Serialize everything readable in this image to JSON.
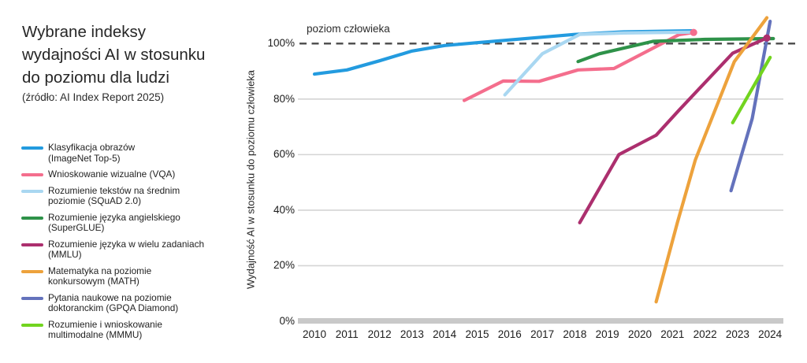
{
  "panel": {
    "title_lines": [
      "Wybrane indeksy",
      "wydajności AI w stosunku",
      "do poziomu dla ludzi"
    ],
    "source": "(źródło: AI Index Report 2025)"
  },
  "chart_data": {
    "type": "line",
    "title": "Wybrane indeksy wydajności AI w stosunku do poziomu dla ludzi",
    "source": "(źródło: AI Index Report 2025)",
    "xlabel": "",
    "ylabel": "Wydajność AI w stosunku do poziomu człowieka",
    "human_level_label": "poziom człowieka",
    "human_level_pct": 100,
    "ylim": [
      0,
      112
    ],
    "x_ticks": [
      2010,
      2011,
      2012,
      2013,
      2014,
      2015,
      2016,
      2017,
      2018,
      2019,
      2020,
      2021,
      2022,
      2023,
      2024
    ],
    "y_ticks": [
      {
        "pct": 0,
        "label": "0%"
      },
      {
        "pct": 20,
        "label": "20%"
      },
      {
        "pct": 40,
        "label": "40%"
      },
      {
        "pct": 60,
        "label": "60%"
      },
      {
        "pct": 80,
        "label": "80%"
      },
      {
        "pct": 100,
        "label": "100%"
      }
    ],
    "y_grid": [
      20,
      40,
      60,
      80
    ],
    "grid": "horizontal",
    "legend_position": "left",
    "grid_color": "#d4d4d4",
    "baseline_color": "#c9c9c9",
    "dashed_line_color": "#4a4a4a",
    "series": [
      {
        "id": "imagenet",
        "label_lines": [
          "Klasyfikacja obrazów",
          "(ImageNet Top-5)"
        ],
        "color": "#239bdf",
        "end_dot": false,
        "points": [
          [
            2010,
            89
          ],
          [
            2011,
            90.5
          ],
          [
            2012,
            93.8
          ],
          [
            2013,
            97.3
          ],
          [
            2014,
            99.3
          ],
          [
            2015,
            100.3
          ],
          [
            2016,
            101.3
          ],
          [
            2017,
            102.3
          ],
          [
            2018,
            103.3
          ],
          [
            2019.5,
            104.2
          ],
          [
            2021.6,
            104.6
          ]
        ]
      },
      {
        "id": "vqa",
        "label_lines": [
          "Wnioskowanie wizualne (VQA)"
        ],
        "color": "#f46e8d",
        "end_dot": true,
        "points": [
          [
            2014.6,
            79.5
          ],
          [
            2015.8,
            86.5
          ],
          [
            2016.9,
            86.4
          ],
          [
            2018.1,
            90.5
          ],
          [
            2019.2,
            91
          ],
          [
            2021.2,
            103.2
          ],
          [
            2021.65,
            104
          ]
        ]
      },
      {
        "id": "squad",
        "label_lines": [
          "Rozumienie tekstów na średnim",
          "poziomie (SQuAD 2.0)"
        ],
        "color": "#a9d7f1",
        "end_dot": false,
        "points": [
          [
            2015.85,
            81.5
          ],
          [
            2017,
            96.3
          ],
          [
            2018.15,
            103.3
          ],
          [
            2019.5,
            103.8
          ],
          [
            2021.6,
            104.1
          ]
        ]
      },
      {
        "id": "superglue",
        "label_lines": [
          "Rozumienie języka angielskiego",
          "(SuperGLUE)"
        ],
        "color": "#2e9249",
        "end_dot": false,
        "points": [
          [
            2018.1,
            93.5
          ],
          [
            2018.75,
            96.3
          ],
          [
            2020.4,
            100.8
          ],
          [
            2022,
            101.5
          ],
          [
            2024.1,
            101.8
          ]
        ]
      },
      {
        "id": "mmlu",
        "label_lines": [
          "Rozumienie języka w wielu zadaniach",
          "(MMLU)"
        ],
        "color": "#ac2f6e",
        "end_dot": true,
        "points": [
          [
            2018.15,
            35.5
          ],
          [
            2019.35,
            60
          ],
          [
            2020.5,
            67
          ],
          [
            2021.2,
            76
          ],
          [
            2022.85,
            96.5
          ],
          [
            2023.9,
            102
          ]
        ]
      },
      {
        "id": "math",
        "label_lines": [
          "Matematyka na poziomie",
          "konkursowym (MATH)"
        ],
        "color": "#eda23c",
        "end_dot": false,
        "points": [
          [
            2020.5,
            7
          ],
          [
            2021.15,
            35.5
          ],
          [
            2021.7,
            58
          ],
          [
            2022.9,
            93.5
          ],
          [
            2023.9,
            109.3
          ]
        ]
      },
      {
        "id": "gpqa",
        "label_lines": [
          "Pytania naukowe na poziomie",
          "doktoranckim (GPQA Diamond)"
        ],
        "color": "#6472bc",
        "end_dot": false,
        "points": [
          [
            2022.8,
            47
          ],
          [
            2023.45,
            73
          ],
          [
            2024,
            108
          ]
        ]
      },
      {
        "id": "mmmu",
        "label_lines": [
          "Rozumienie i wnioskowanie",
          "multimodalne (MMMU)"
        ],
        "color": "#72d41f",
        "end_dot": false,
        "points": [
          [
            2022.85,
            71.5
          ],
          [
            2024,
            95
          ]
        ]
      }
    ]
  }
}
